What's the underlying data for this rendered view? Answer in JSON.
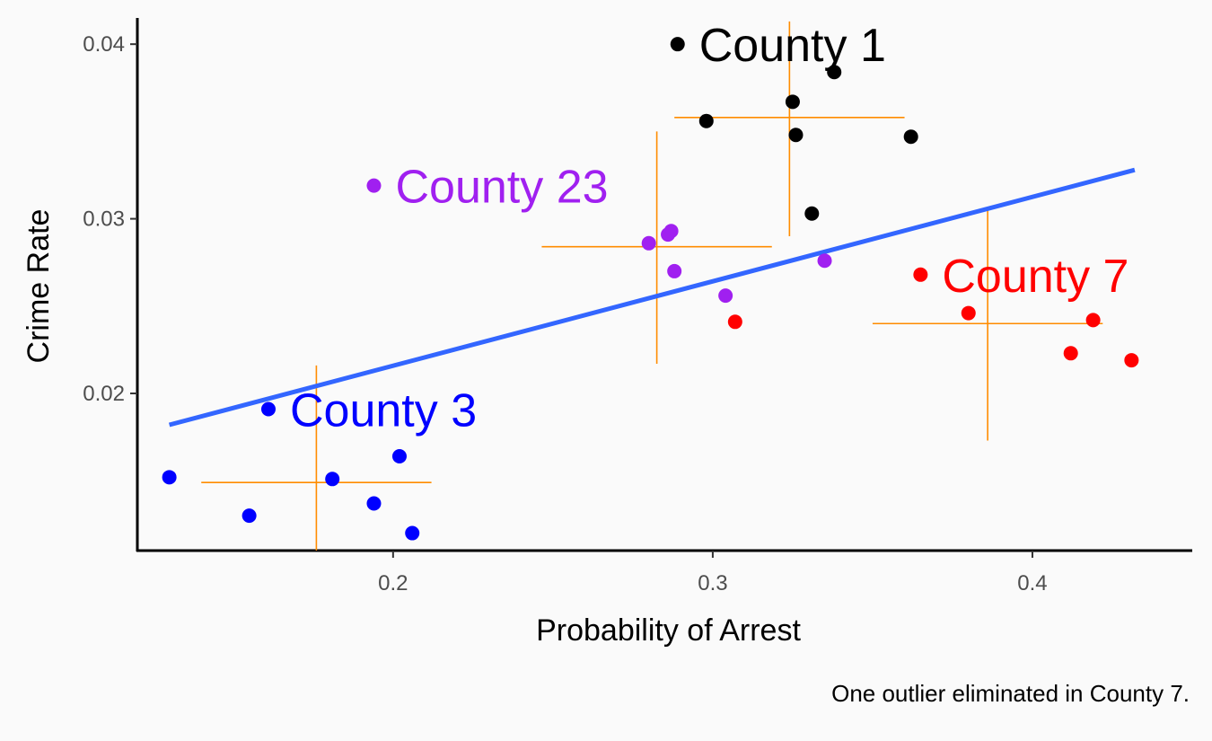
{
  "chart_data": {
    "type": "scatter",
    "title": "",
    "xlabel": "Probability of Arrest",
    "ylabel": "Crime Rate",
    "caption": "One outlier eliminated in County 7.",
    "xlim": [
      0.12,
      0.45
    ],
    "ylim": [
      0.011,
      0.0415
    ],
    "x_ticks": [
      0.2,
      0.3,
      0.4
    ],
    "x_tick_labels": [
      "0.2",
      "0.3",
      "0.4"
    ],
    "y_ticks": [
      0.02,
      0.03,
      0.04
    ],
    "y_tick_labels": [
      "0.02",
      "0.03",
      "0.04"
    ],
    "grid": false,
    "series": [
      {
        "name": "County 1",
        "color": "#000000",
        "points": [
          {
            "x": 0.289,
            "y": 0.04
          },
          {
            "x": 0.298,
            "y": 0.0356
          },
          {
            "x": 0.325,
            "y": 0.0367
          },
          {
            "x": 0.326,
            "y": 0.0348
          },
          {
            "x": 0.331,
            "y": 0.0303
          },
          {
            "x": 0.338,
            "y": 0.0384
          },
          {
            "x": 0.362,
            "y": 0.0347
          }
        ],
        "crosshair": {
          "x_center": 0.324,
          "x_min": 0.288,
          "x_max": 0.36,
          "y_center": 0.0358,
          "y_min": 0.029,
          "y_max": 0.0413
        }
      },
      {
        "name": "County 23",
        "color": "#a020f0",
        "points": [
          {
            "x": 0.194,
            "y": 0.0319
          },
          {
            "x": 0.28,
            "y": 0.0286
          },
          {
            "x": 0.286,
            "y": 0.0291
          },
          {
            "x": 0.287,
            "y": 0.0293
          },
          {
            "x": 0.288,
            "y": 0.027
          },
          {
            "x": 0.304,
            "y": 0.0256
          },
          {
            "x": 0.335,
            "y": 0.0276
          }
        ],
        "crosshair": {
          "x_center": 0.2825,
          "x_min": 0.2465,
          "x_max": 0.3185,
          "y_center": 0.0284,
          "y_min": 0.0217,
          "y_max": 0.035
        }
      },
      {
        "name": "County 3",
        "color": "#0000ff",
        "points": [
          {
            "x": 0.13,
            "y": 0.0152
          },
          {
            "x": 0.155,
            "y": 0.013
          },
          {
            "x": 0.161,
            "y": 0.0191
          },
          {
            "x": 0.181,
            "y": 0.0151
          },
          {
            "x": 0.194,
            "y": 0.0137
          },
          {
            "x": 0.202,
            "y": 0.0164
          },
          {
            "x": 0.206,
            "y": 0.012
          }
        ],
        "crosshair": {
          "x_center": 0.176,
          "x_min": 0.14,
          "x_max": 0.212,
          "y_center": 0.0149,
          "y_min": 0.011,
          "y_max": 0.0216
        }
      },
      {
        "name": "County 7",
        "color": "#ff0000",
        "points": [
          {
            "x": 0.307,
            "y": 0.0241
          },
          {
            "x": 0.365,
            "y": 0.0268
          },
          {
            "x": 0.38,
            "y": 0.0246
          },
          {
            "x": 0.412,
            "y": 0.0223
          },
          {
            "x": 0.419,
            "y": 0.0242
          },
          {
            "x": 0.431,
            "y": 0.0219
          }
        ],
        "crosshair": {
          "x_center": 0.386,
          "x_min": 0.35,
          "x_max": 0.422,
          "y_center": 0.024,
          "y_min": 0.0173,
          "y_max": 0.0306
        }
      }
    ],
    "trend_line": {
      "color": "#3366ff",
      "x": [
        0.13,
        0.432
      ],
      "y": [
        0.0182,
        0.0328
      ]
    },
    "crosshair_color": "#ff8c00"
  }
}
